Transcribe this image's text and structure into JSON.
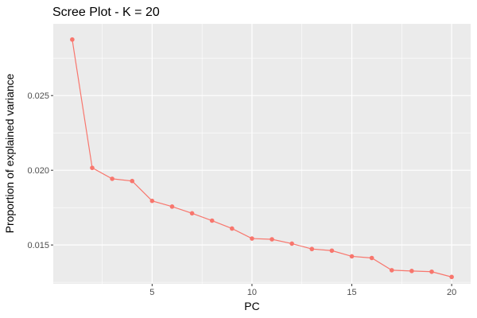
{
  "chart_data": {
    "type": "line",
    "title": "Scree Plot - K = 20",
    "xlabel": "PC",
    "ylabel": "Proportion of explained variance",
    "xlim": [
      0.05,
      20.95
    ],
    "ylim": [
      0.0124,
      0.0298
    ],
    "x_ticks": [
      5,
      10,
      15,
      20
    ],
    "x_minor_ticks": [
      2.5,
      7.5,
      12.5,
      17.5
    ],
    "y_ticks": [
      0.015,
      0.02,
      0.025
    ],
    "y_tick_labels": [
      "0.015",
      "0.020",
      "0.025"
    ],
    "y_minor_ticks": [
      0.0125,
      0.0175,
      0.0225,
      0.0275
    ],
    "grid": true,
    "legend": "none",
    "series": [
      {
        "color": "#f8766d",
        "x": [
          1,
          2,
          3,
          4,
          5,
          6,
          7,
          8,
          9,
          10,
          11,
          12,
          13,
          14,
          15,
          16,
          17,
          18,
          19,
          20
        ],
        "y": [
          0.02875,
          0.02016,
          0.01943,
          0.01928,
          0.01795,
          0.01757,
          0.01712,
          0.01663,
          0.0161,
          0.01543,
          0.01538,
          0.01509,
          0.01473,
          0.01462,
          0.01424,
          0.01413,
          0.01331,
          0.01326,
          0.01321,
          0.01286
        ]
      }
    ]
  },
  "colors": {
    "panel_background": "#ebebeb",
    "gridline": "#ffffff",
    "series": "#f8766d",
    "tick_text": "#4d4d4d",
    "tick_mark": "#333333"
  }
}
